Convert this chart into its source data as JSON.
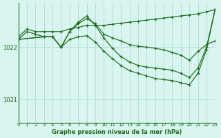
{
  "title": "Graphe pression niveau de la mer (hPa)",
  "background_color": "#d8f5f0",
  "grid_color": "#b8ddd8",
  "line_color": "#1a6b1a",
  "marker_color": "#1a6b1a",
  "xlim": [
    0,
    23
  ],
  "ylim": [
    1020.55,
    1022.85
  ],
  "yticks": [
    1021,
    1022
  ],
  "xticks": [
    0,
    1,
    2,
    3,
    4,
    5,
    6,
    7,
    8,
    9,
    10,
    11,
    12,
    13,
    14,
    15,
    16,
    17,
    18,
    19,
    20,
    21,
    22,
    23
  ],
  "series": [
    {
      "x": [
        0,
        1,
        2,
        3,
        4,
        5,
        6,
        7,
        8,
        9,
        10,
        11,
        12,
        13,
        14,
        15,
        16,
        17,
        18,
        19,
        20,
        21,
        22,
        23
      ],
      "y": [
        1022.2,
        1022.35,
        1022.3,
        1022.3,
        1022.3,
        1022.3,
        1022.35,
        1022.38,
        1022.42,
        1022.42,
        1022.42,
        1022.44,
        1022.46,
        1022.48,
        1022.5,
        1022.52,
        1022.54,
        1022.56,
        1022.58,
        1022.6,
        1022.62,
        1022.64,
        1022.68,
        1022.72
      ]
    },
    {
      "x": [
        0,
        1,
        2,
        3,
        4,
        5,
        6,
        7,
        8,
        9,
        10,
        11,
        12,
        13,
        14,
        15,
        16,
        17,
        18,
        19,
        20,
        21,
        22,
        23
      ],
      "y": [
        1022.15,
        1022.3,
        1022.25,
        1022.2,
        1022.2,
        1022.0,
        1022.3,
        1022.45,
        1022.55,
        1022.45,
        1022.25,
        1022.18,
        1022.12,
        1022.05,
        1022.02,
        1022.0,
        1021.98,
        1021.95,
        1021.9,
        1021.85,
        1021.75,
        1021.92,
        1022.05,
        1022.12
      ]
    },
    {
      "x": [
        0,
        3,
        4,
        5,
        6,
        7,
        8,
        9,
        10,
        11,
        12,
        13,
        14,
        15,
        16,
        17,
        18,
        19,
        20,
        21,
        22,
        23
      ],
      "y": [
        1022.15,
        1022.2,
        1022.2,
        1022.0,
        1022.3,
        1022.48,
        1022.6,
        1022.42,
        1022.18,
        1021.98,
        1021.82,
        1021.72,
        1021.65,
        1021.62,
        1021.6,
        1021.58,
        1021.56,
        1021.5,
        1021.42,
        1021.6,
        1022.0,
        1022.72
      ]
    },
    {
      "x": [
        0,
        3,
        4,
        5,
        6,
        7,
        8,
        9,
        10,
        11,
        12,
        13,
        14,
        15,
        16,
        17,
        18,
        19,
        20,
        21,
        22,
        23
      ],
      "y": [
        1022.15,
        1022.2,
        1022.2,
        1022.0,
        1022.15,
        1022.2,
        1022.22,
        1022.1,
        1021.92,
        1021.78,
        1021.65,
        1021.55,
        1021.5,
        1021.45,
        1021.4,
        1021.38,
        1021.36,
        1021.32,
        1021.28,
        1021.5,
        1021.95,
        1022.72
      ]
    }
  ]
}
